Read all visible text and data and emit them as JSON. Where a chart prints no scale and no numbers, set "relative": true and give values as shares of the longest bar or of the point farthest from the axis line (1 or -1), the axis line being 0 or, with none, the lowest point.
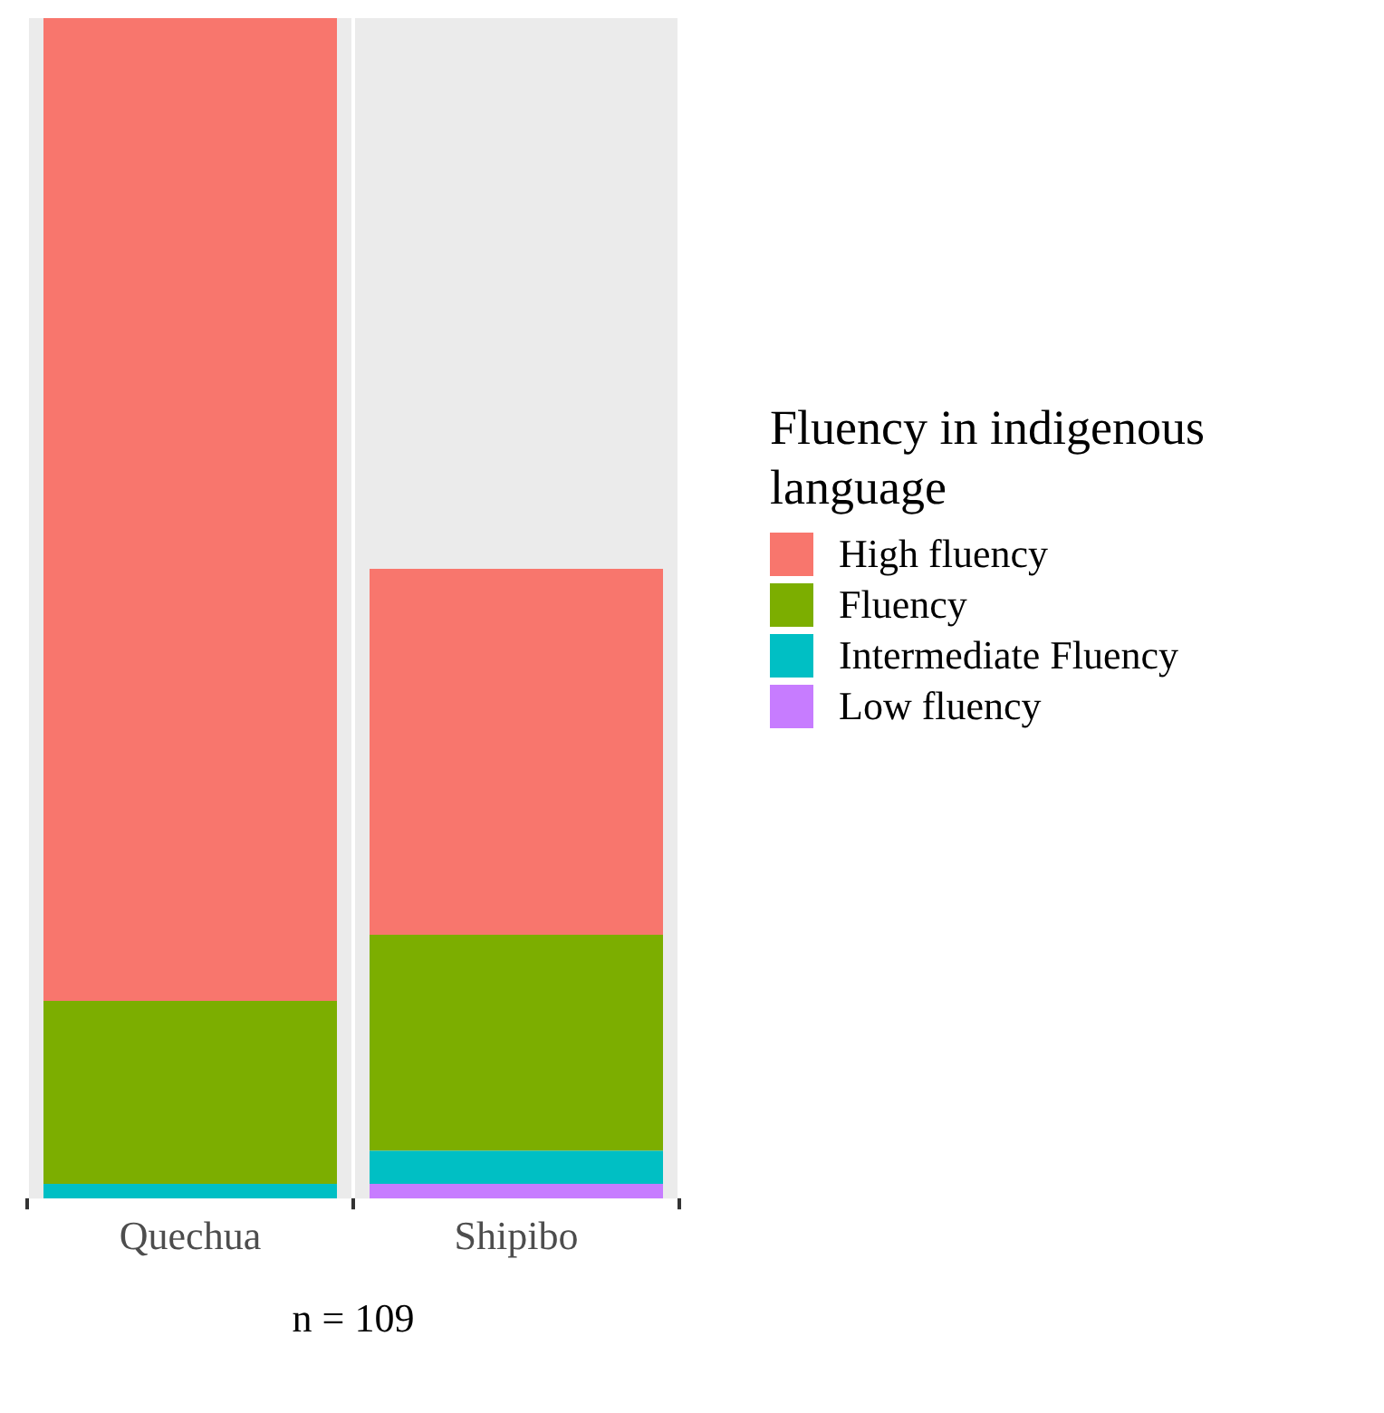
{
  "chart_data": {
    "type": "bar",
    "stacked": true,
    "relative": true,
    "categories": [
      "Quechua",
      "Shipibo"
    ],
    "legend_title": "Fluency in indigenous language",
    "legend": "right",
    "grid": "x",
    "series": [
      {
        "name": "Low fluency",
        "color": "#c77cff",
        "values": [
          0,
          0.0125
        ]
      },
      {
        "name": "Intermediate Fluency",
        "color": "#00bfc4",
        "values": [
          0.0125,
          0.028
        ]
      },
      {
        "name": "Fluency",
        "color": "#7cae00",
        "values": [
          0.155,
          0.183
        ]
      },
      {
        "name": "High fluency",
        "color": "#f8766d",
        "values": [
          0.8325,
          0.31
        ]
      }
    ],
    "annotations": [
      "n = 109"
    ]
  }
}
